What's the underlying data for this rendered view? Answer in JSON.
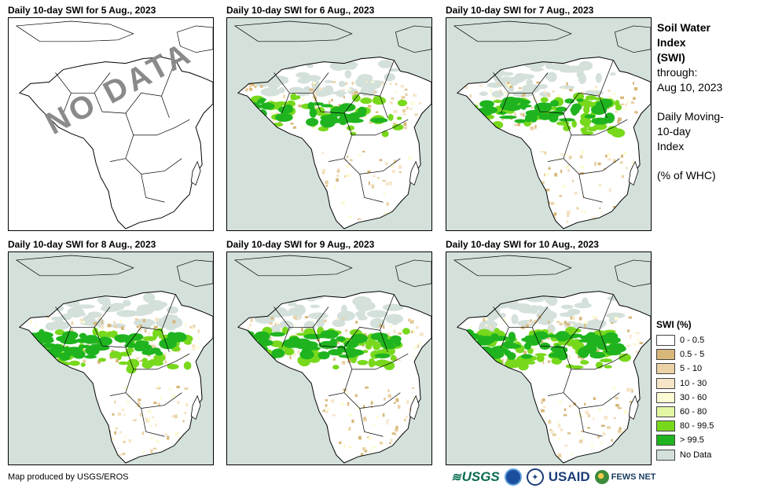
{
  "panels": [
    {
      "title": "Daily 10-day  SWI for 5 Aug., 2023",
      "status": "no-data",
      "overlay": "NO DATA",
      "intensity": 0
    },
    {
      "title": "Daily 10-day  SWI for 6 Aug., 2023",
      "status": "data",
      "intensity": 1
    },
    {
      "title": "Daily 10-day  SWI for 7 Aug., 2023",
      "status": "data",
      "intensity": 2
    },
    {
      "title": "Daily 10-day  SWI for 8 Aug., 2023",
      "status": "data",
      "intensity": 3
    },
    {
      "title": "Daily 10-day  SWI for 9 Aug., 2023",
      "status": "data",
      "intensity": 3
    },
    {
      "title": "Daily 10-day  SWI for 10 Aug., 2023",
      "status": "data",
      "intensity": 4
    }
  ],
  "info": {
    "title_line1": "Soil Water",
    "title_line2": "Index",
    "title_line3": "(SWI)",
    "through_label": "through:",
    "through_date": "Aug 10, 2023",
    "desc_line1": "Daily Moving-",
    "desc_line2": "10-day",
    "desc_line3": "Index",
    "units": "(% of WHC)"
  },
  "legend": {
    "title": "SWI (%)",
    "items": [
      {
        "label": "0 - 0.5",
        "color": "#ffffff"
      },
      {
        "label": "0.5 - 5",
        "color": "#d7b77a"
      },
      {
        "label": "5 - 10",
        "color": "#ead1a6"
      },
      {
        "label": "10 - 30",
        "color": "#f6e5c7"
      },
      {
        "label": "30 - 60",
        "color": "#fdfbd4"
      },
      {
        "label": "60 - 80",
        "color": "#e3f7a3"
      },
      {
        "label": "80 - 99.5",
        "color": "#77d81c"
      },
      {
        "label": "> 99.5",
        "color": "#1fb41f"
      },
      {
        "label": "No Data",
        "color": "#d4e0da"
      }
    ]
  },
  "credit": "Map produced by USGS/EROS",
  "logos": {
    "usgs": "USGS",
    "noaa": "NOAA",
    "usaid": "USAID",
    "fews": "FEWS NET"
  }
}
